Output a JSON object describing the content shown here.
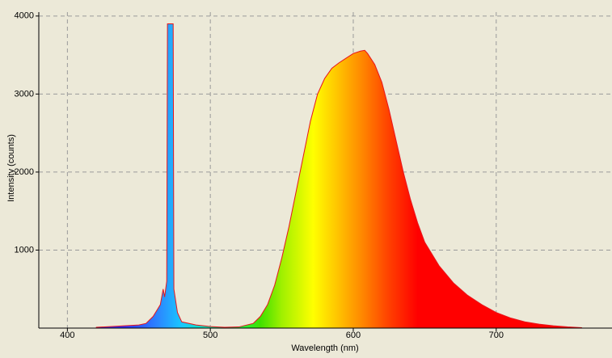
{
  "chart_data": {
    "type": "area",
    "xlabel": "Wavelength (nm)",
    "ylabel": "Intensity (counts)",
    "x": [
      420,
      430,
      440,
      450,
      455,
      460,
      465,
      467,
      468,
      469.5,
      470,
      474,
      474.5,
      477,
      480,
      490,
      500,
      510,
      520,
      530,
      535,
      540,
      545,
      550,
      555,
      560,
      565,
      570,
      575,
      580,
      585,
      590,
      595,
      600,
      605,
      608,
      610,
      615,
      620,
      625,
      630,
      635,
      640,
      645,
      650,
      660,
      670,
      680,
      690,
      700,
      710,
      720,
      730,
      740,
      750,
      760
    ],
    "values": [
      10,
      20,
      30,
      40,
      60,
      150,
      300,
      500,
      400,
      600,
      3900,
      3900,
      500,
      200,
      80,
      40,
      20,
      10,
      15,
      60,
      150,
      300,
      550,
      900,
      1300,
      1750,
      2200,
      2650,
      3000,
      3200,
      3330,
      3400,
      3460,
      3520,
      3550,
      3560,
      3520,
      3380,
      3150,
      2800,
      2400,
      2000,
      1650,
      1350,
      1100,
      800,
      580,
      420,
      300,
      200,
      130,
      80,
      50,
      30,
      15,
      5
    ],
    "color": "#e8141c",
    "xlim": [
      380,
      781
    ],
    "ylim": [
      0,
      4050
    ],
    "xticks": [
      400,
      500,
      600,
      700
    ],
    "yticks": [
      1000,
      2000,
      3000,
      4000
    ],
    "grid": true
  }
}
